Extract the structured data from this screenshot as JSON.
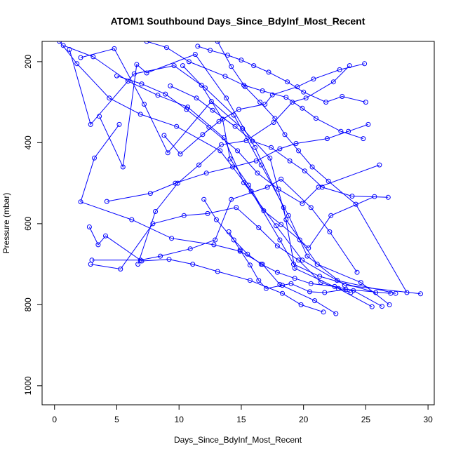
{
  "chart_data": {
    "type": "line",
    "title": "ATOM1 Southbound Days_Since_BdyInf_Most_Recent",
    "xlabel": "Days_Since_BdyInf_Most_Recent",
    "ylabel": "Pressure (mbar)",
    "xlim": [
      -1,
      30.5
    ],
    "ylim": [
      1047,
      150
    ],
    "y_reversed": true,
    "x_ticks": [
      0,
      5,
      10,
      15,
      20,
      25,
      30
    ],
    "x_tick_labels": [
      "0",
      "5",
      "10",
      "15",
      "20",
      "25",
      "30"
    ],
    "y_ticks": [
      200,
      400,
      600,
      800,
      1000
    ],
    "y_tick_labels": [
      "200",
      "400",
      "600",
      "800",
      "1000"
    ],
    "grid": false,
    "legend": "none",
    "color": "#0000ff",
    "series": [
      {
        "x": [
          0.4,
          1.8,
          4.4,
          6.9,
          9.8,
          13.3,
          15.8,
          18.1,
          19.2,
          21.3,
          25.8
        ],
        "y": [
          150,
          205,
          290,
          330,
          360,
          420,
          520,
          640,
          700,
          730,
          770
        ]
      },
      {
        "x": [
          0.7,
          3.1,
          5.9,
          8.3,
          10.7,
          13.6,
          15.2,
          17.8,
          19.9,
          22.7,
          27.4
        ],
        "y": [
          160,
          188,
          248,
          283,
          312,
          388,
          499,
          605,
          690,
          740,
          772
        ]
      },
      {
        "x": [
          1.2,
          2.9,
          6.4,
          9.6,
          12.1,
          14.4,
          16.6,
          18.8,
          20.3,
          23.3,
          29.4
        ],
        "y": [
          170,
          355,
          230,
          210,
          265,
          332,
          455,
          580,
          680,
          752,
          773
        ]
      },
      {
        "x": [
          2.1,
          4.8,
          7.2,
          9.1,
          12.6,
          15.1,
          17.3,
          18.6,
          21.1,
          24.6,
          26.9
        ],
        "y": [
          190,
          168,
          305,
          425,
          298,
          365,
          438,
          590,
          700,
          745,
          800
        ]
      },
      {
        "x": [
          3.6,
          5.5,
          6.6,
          7.4,
          11.3,
          13.8,
          16.1,
          18.4,
          19.3,
          22.8,
          25.5
        ],
        "y": [
          335,
          460,
          207,
          228,
          182,
          290,
          412,
          560,
          710,
          760,
          805
        ]
      },
      {
        "x": [
          5.2,
          3.2,
          2.1,
          6.2,
          9.4,
          12.8,
          14.9,
          16.7,
          18.1,
          20.9,
          22.6
        ],
        "y": [
          355,
          438,
          546,
          590,
          636,
          652,
          668,
          700,
          750,
          790,
          822
        ]
      },
      {
        "x": [
          2.8,
          3.5,
          4.1,
          7.0,
          9.2,
          11.1,
          13.1,
          15.7,
          18.3,
          19.8,
          21.6
        ],
        "y": [
          608,
          652,
          630,
          692,
          688,
          700,
          718,
          740,
          772,
          800,
          818
        ]
      },
      {
        "x": [
          2.9,
          5.3,
          7.9,
          10.4,
          12.3,
          14.6,
          16.4,
          17.9,
          19.6,
          21.4,
          23.8
        ],
        "y": [
          700,
          712,
          600,
          580,
          575,
          560,
          610,
          655,
          690,
          745,
          770
        ]
      },
      {
        "x": [
          3.0,
          6.9,
          8.5,
          10.9,
          12.9,
          14.2,
          17.1,
          18.2,
          20.6,
          22.1,
          24.3
        ],
        "y": [
          690,
          690,
          680,
          662,
          640,
          540,
          510,
          490,
          560,
          620,
          720
        ]
      },
      {
        "x": [
          6.7,
          8.1,
          9.9,
          11.6,
          13.4,
          15.4,
          17.6,
          19.1,
          20.2,
          22.4,
          23.7
        ],
        "y": [
          700,
          570,
          500,
          455,
          405,
          395,
          350,
          300,
          290,
          250,
          210
        ]
      },
      {
        "x": [
          4.2,
          7.7,
          9.7,
          12.2,
          14.3,
          16.2,
          18.1,
          19.4,
          21.9,
          23.6,
          25.2
        ],
        "y": [
          545,
          525,
          500,
          475,
          460,
          445,
          415,
          402,
          390,
          372,
          355
        ]
      },
      {
        "x": [
          8.8,
          10.1,
          11.9,
          13.2,
          14.8,
          16.9,
          17.5,
          19.5,
          20.8,
          22.9,
          24.9
        ],
        "y": [
          382,
          428,
          380,
          348,
          318,
          305,
          282,
          262,
          243,
          220,
          205
        ]
      },
      {
        "x": [
          5.0,
          7.0,
          8.9,
          10.6,
          12.4,
          14.7,
          16.3,
          18.0,
          19.9,
          21.2,
          26.1
        ],
        "y": [
          235,
          255,
          280,
          318,
          362,
          420,
          475,
          515,
          550,
          510,
          455
        ]
      },
      {
        "x": [
          10.3,
          11.8,
          13.5,
          14.1,
          15.6,
          16.8,
          18.2,
          19.7,
          20.4,
          22.2,
          25.7
        ],
        "y": [
          210,
          258,
          342,
          440,
          505,
          568,
          602,
          640,
          660,
          580,
          533
        ]
      },
      {
        "x": [
          9.3,
          11.4,
          12.7,
          14.5,
          15.9,
          17.4,
          18.9,
          20.1,
          21.5,
          23.9,
          26.8
        ],
        "y": [
          260,
          290,
          320,
          360,
          396,
          412,
          445,
          470,
          510,
          532,
          535
        ]
      },
      {
        "x": [
          13.1,
          14.2,
          15.3,
          16.5,
          17.7,
          18.5,
          19.6,
          20.7,
          22.0,
          24.2,
          28.3
        ],
        "y": [
          150,
          212,
          262,
          300,
          340,
          380,
          420,
          460,
          495,
          552,
          770
        ]
      },
      {
        "x": [
          11.5,
          12.5,
          13.9,
          15.0,
          16.0,
          17.2,
          18.7,
          20.0,
          21.8,
          23.1,
          25.0
        ],
        "y": [
          162,
          172,
          184,
          196,
          210,
          226,
          250,
          275,
          300,
          286,
          300
        ]
      },
      {
        "x": [
          14.0,
          14.9,
          15.7,
          16.4,
          17.0,
          18.3,
          19.0,
          20.5,
          21.7,
          23.4,
          27.0
        ],
        "y": [
          620,
          665,
          702,
          740,
          760,
          752,
          748,
          768,
          770,
          762,
          772
        ]
      },
      {
        "x": [
          12.0,
          13.0,
          14.4,
          15.5,
          16.6,
          17.9,
          19.3,
          20.6,
          22.5,
          24.0,
          26.3
        ],
        "y": [
          540,
          590,
          640,
          675,
          700,
          720,
          735,
          748,
          755,
          765,
          804
        ]
      },
      {
        "x": [
          7.4,
          9.0,
          10.8,
          13.7,
          15.2,
          16.7,
          18.6,
          19.9,
          21.0,
          23.0,
          24.8
        ],
        "y": [
          150,
          165,
          200,
          236,
          258,
          272,
          288,
          315,
          340,
          372,
          390
        ]
      }
    ]
  }
}
